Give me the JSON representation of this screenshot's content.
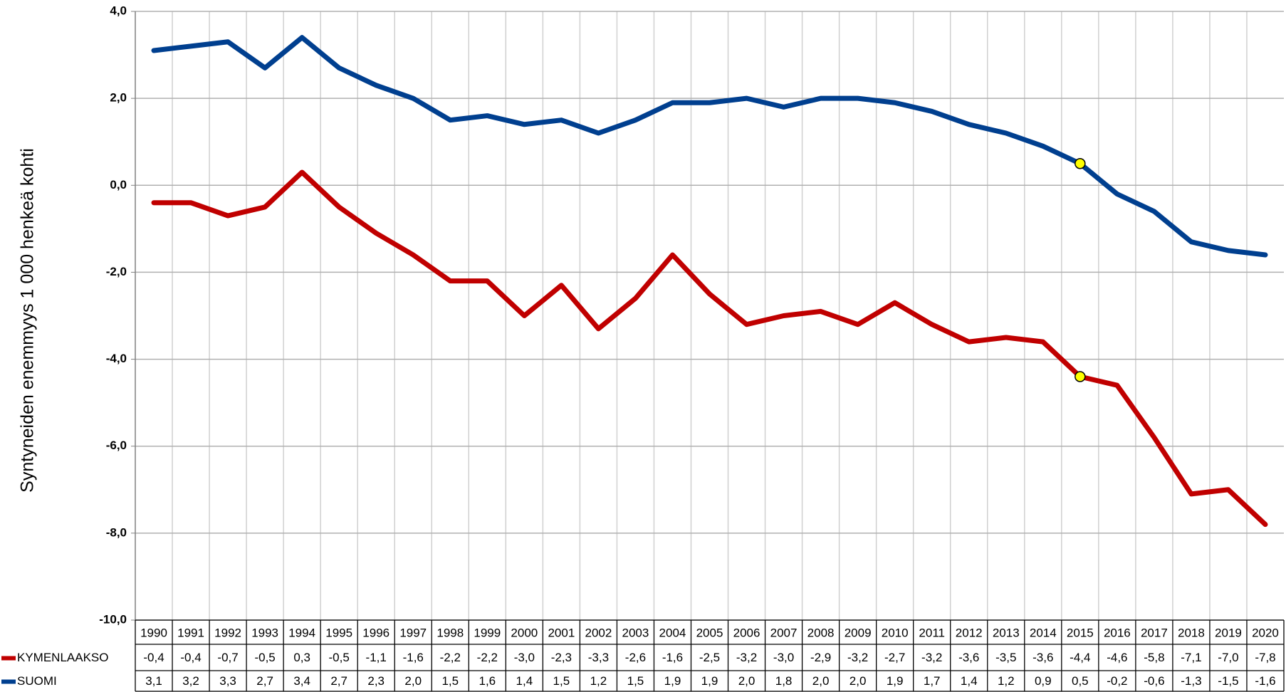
{
  "chart_data": {
    "type": "line",
    "y_label": "Syntyneiden enemmyys 1 000 henkeä kohti",
    "categories": [
      "1990",
      "1991",
      "1992",
      "1993",
      "1994",
      "1995",
      "1996",
      "1997",
      "1998",
      "1999",
      "2000",
      "2001",
      "2002",
      "2003",
      "2004",
      "2005",
      "2006",
      "2007",
      "2008",
      "2009",
      "2010",
      "2011",
      "2012",
      "2013",
      "2014",
      "2015",
      "2016",
      "2017",
      "2018",
      "2019",
      "2020"
    ],
    "series": [
      {
        "name": "KYMENLAAKSO",
        "color": "#c00000",
        "values": [
          -0.4,
          -0.4,
          -0.7,
          -0.5,
          0.3,
          -0.5,
          -1.1,
          -1.6,
          -2.2,
          -2.2,
          -3.0,
          -2.3,
          -3.3,
          -2.6,
          -1.6,
          -2.5,
          -3.2,
          -3.0,
          -2.9,
          -3.2,
          -2.7,
          -3.2,
          -3.6,
          -3.5,
          -3.6,
          -4.4,
          -4.6,
          -5.8,
          -7.1,
          -7.0,
          -7.8
        ],
        "value_labels": [
          "-0,4",
          "-0,4",
          "-0,7",
          "-0,5",
          "0,3",
          "-0,5",
          "-1,1",
          "-1,6",
          "-2,2",
          "-2,2",
          "-3,0",
          "-2,3",
          "-3,3",
          "-2,6",
          "-1,6",
          "-2,5",
          "-3,2",
          "-3,0",
          "-2,9",
          "-3,2",
          "-2,7",
          "-3,2",
          "-3,6",
          "-3,5",
          "-3,6",
          "-4,4",
          "-4,6",
          "-5,8",
          "-7,1",
          "-7,0",
          "-7,8"
        ]
      },
      {
        "name": "SUOMI",
        "color": "#003f8f",
        "values": [
          3.1,
          3.2,
          3.3,
          2.7,
          3.4,
          2.7,
          2.3,
          2.0,
          1.5,
          1.6,
          1.4,
          1.5,
          1.2,
          1.5,
          1.9,
          1.9,
          2.0,
          1.8,
          2.0,
          2.0,
          1.9,
          1.7,
          1.4,
          1.2,
          0.9,
          0.5,
          -0.2,
          -0.6,
          -1.3,
          -1.5,
          -1.6
        ],
        "value_labels": [
          "3,1",
          "3,2",
          "3,3",
          "2,7",
          "3,4",
          "2,7",
          "2,3",
          "2,0",
          "1,5",
          "1,6",
          "1,4",
          "1,5",
          "1,2",
          "1,5",
          "1,9",
          "1,9",
          "2,0",
          "1,8",
          "2,0",
          "2,0",
          "1,9",
          "1,7",
          "1,4",
          "1,2",
          "0,9",
          "0,5",
          "-0,2",
          "-0,6",
          "-1,3",
          "-1,5",
          "-1,6"
        ]
      }
    ],
    "ylim": [
      -10,
      4
    ],
    "yticks": [
      {
        "value": -10,
        "label": "-10,0"
      },
      {
        "value": -8,
        "label": "-8,0"
      },
      {
        "value": -6,
        "label": "-6,0"
      },
      {
        "value": -4,
        "label": "-4,0"
      },
      {
        "value": -2,
        "label": "-2,0"
      },
      {
        "value": 0,
        "label": "0,0"
      },
      {
        "value": 2,
        "label": "2,0"
      },
      {
        "value": 4,
        "label": "4,0"
      }
    ],
    "grid": true,
    "highlight": {
      "category_index": 25,
      "color": "#ffff00"
    }
  }
}
